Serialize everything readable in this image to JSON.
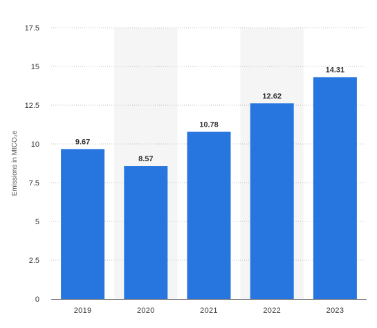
{
  "chart_data": {
    "type": "bar",
    "categories": [
      "2019",
      "2020",
      "2021",
      "2022",
      "2023"
    ],
    "values": [
      9.67,
      8.57,
      10.78,
      12.62,
      14.31
    ],
    "data_labels": [
      "9.67",
      "8.57",
      "10.78",
      "12.62",
      "14.31"
    ],
    "title": "",
    "xlabel": "",
    "ylabel": "Emissions in MtCO₂e",
    "ylim": [
      0,
      17.5
    ],
    "y_ticks": [
      0,
      2.5,
      5,
      7.5,
      10,
      12.5,
      15,
      17.5
    ],
    "y_tick_labels": [
      "0",
      "2.5",
      "5",
      "7.5",
      "10",
      "12.5",
      "15",
      "17.5"
    ],
    "grid": true,
    "grid_style": "dotted",
    "alternating_column_bands": true,
    "legend": "none",
    "colors": {
      "bar": "#2775df",
      "band": "#f5f5f5",
      "grid": "#bdbdbd",
      "baseline": "#555555",
      "text": "#333333"
    }
  }
}
